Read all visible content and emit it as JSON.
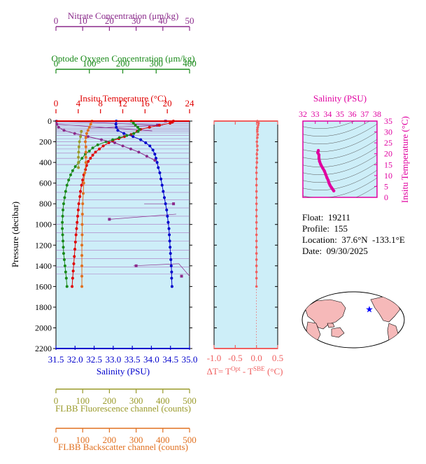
{
  "chart_data": [
    {
      "type": "line",
      "panel": "main profile",
      "y_axis": {
        "label": "Pressure (decibar)",
        "range": [
          0,
          2200
        ],
        "inverted": true,
        "ticks": [
          0,
          200,
          400,
          600,
          800,
          1000,
          1200,
          1400,
          1600,
          1800,
          2000,
          2200
        ]
      },
      "x_axes": [
        {
          "id": "nitrate",
          "label": "Nitrate Concentration (μm/kg)",
          "range": [
            0,
            50
          ],
          "ticks": [
            0,
            10,
            20,
            30,
            40,
            50
          ],
          "color": "#8b2a8b",
          "position": "top"
        },
        {
          "id": "oxygen",
          "label": "Optode Oxygen Concentration (μm/kg)",
          "range": [
            0,
            400
          ],
          "ticks": [
            0,
            100,
            200,
            300,
            400
          ],
          "color": "#1a8a1a",
          "position": "top"
        },
        {
          "id": "temperature",
          "label": "Insitu Temperature (°C)",
          "range": [
            0,
            24
          ],
          "ticks": [
            0,
            4,
            8,
            12,
            16,
            20,
            24
          ],
          "color": "#e00000",
          "position": "top"
        },
        {
          "id": "salinity",
          "label": "Salinity (PSU)",
          "range": [
            31.5,
            35.0
          ],
          "ticks": [
            "31.5",
            "32.0",
            "32.5",
            "33.0",
            "33.5",
            "34.0",
            "34.5",
            "35.0"
          ],
          "color": "#0000cc",
          "position": "bottom"
        },
        {
          "id": "fluorescence",
          "label": "FLBB Fluorescence channel (counts)",
          "range": [
            0,
            500
          ],
          "ticks": [
            0,
            100,
            200,
            300,
            400,
            500
          ],
          "color": "#9a9a2a",
          "position": "bottom"
        },
        {
          "id": "backscatter",
          "label": "FLBB Backscatter channel (counts)",
          "range": [
            0,
            500
          ],
          "ticks": [
            0,
            100,
            200,
            300,
            400,
            500
          ],
          "color": "#e07020",
          "position": "bottom"
        }
      ],
      "series": [
        {
          "axis": "temperature",
          "color": "#e00000",
          "points": [
            [
              21.1,
              0
            ],
            [
              20.9,
              10
            ],
            [
              20.5,
              20
            ],
            [
              18.6,
              40
            ],
            [
              16.8,
              60
            ],
            [
              15.2,
              80
            ],
            [
              14.6,
              100
            ],
            [
              13.5,
              130
            ],
            [
              12.3,
              150
            ],
            [
              11.3,
              170
            ],
            [
              10.2,
              190
            ],
            [
              9.5,
              210
            ],
            [
              8.5,
              240
            ],
            [
              7.8,
              270
            ],
            [
              7.1,
              300
            ],
            [
              6.6,
              330
            ],
            [
              6.2,
              360
            ],
            [
              5.8,
              390
            ],
            [
              5.5,
              430
            ],
            [
              5.3,
              470
            ],
            [
              5.0,
              520
            ],
            [
              4.8,
              570
            ],
            [
              4.6,
              620
            ],
            [
              4.4,
              680
            ],
            [
              4.3,
              730
            ],
            [
              4.1,
              800
            ],
            [
              4.0,
              860
            ],
            [
              3.9,
              920
            ],
            [
              3.8,
              980
            ],
            [
              3.7,
              1040
            ],
            [
              3.6,
              1100
            ],
            [
              3.5,
              1170
            ],
            [
              3.4,
              1240
            ],
            [
              3.3,
              1310
            ],
            [
              3.2,
              1380
            ],
            [
              3.1,
              1450
            ],
            [
              3.0,
              1520
            ],
            [
              2.9,
              1600
            ]
          ]
        },
        {
          "axis": "salinity",
          "color": "#0000cc",
          "points": [
            [
              33.08,
              0
            ],
            [
              33.07,
              30
            ],
            [
              33.08,
              60
            ],
            [
              33.12,
              90
            ],
            [
              33.28,
              120
            ],
            [
              33.52,
              150
            ],
            [
              33.72,
              180
            ],
            [
              33.85,
              210
            ],
            [
              33.96,
              240
            ],
            [
              34.04,
              280
            ],
            [
              34.09,
              320
            ],
            [
              34.12,
              360
            ],
            [
              34.15,
              400
            ],
            [
              34.18,
              450
            ],
            [
              34.22,
              500
            ],
            [
              34.25,
              560
            ],
            [
              34.28,
              620
            ],
            [
              34.31,
              680
            ],
            [
              34.34,
              740
            ],
            [
              34.37,
              800
            ],
            [
              34.4,
              860
            ],
            [
              34.42,
              920
            ],
            [
              34.44,
              980
            ],
            [
              34.46,
              1040
            ],
            [
              34.47,
              1100
            ],
            [
              34.48,
              1160
            ],
            [
              34.49,
              1220
            ],
            [
              34.5,
              1280
            ],
            [
              34.51,
              1340
            ],
            [
              34.52,
              1400
            ],
            [
              34.53,
              1460
            ],
            [
              34.53,
              1520
            ],
            [
              34.54,
              1600
            ]
          ]
        },
        {
          "axis": "oxygen",
          "color": "#1a8a1a",
          "points": [
            [
              225,
              0
            ],
            [
              232,
              20
            ],
            [
              238,
              40
            ],
            [
              245,
              60
            ],
            [
              250,
              80
            ],
            [
              246,
              100
            ],
            [
              233,
              120
            ],
            [
              212,
              140
            ],
            [
              190,
              160
            ],
            [
              170,
              180
            ],
            [
              150,
              200
            ],
            [
              125,
              230
            ],
            [
              110,
              260
            ],
            [
              100,
              290
            ],
            [
              88,
              320
            ],
            [
              78,
              360
            ],
            [
              68,
              400
            ],
            [
              58,
              440
            ],
            [
              50,
              480
            ],
            [
              44,
              520
            ],
            [
              38,
              570
            ],
            [
              33,
              620
            ],
            [
              29,
              680
            ],
            [
              26,
              740
            ],
            [
              23,
              800
            ],
            [
              21,
              860
            ],
            [
              20,
              920
            ],
            [
              19,
              980
            ],
            [
              19,
              1040
            ],
            [
              20,
              1100
            ],
            [
              21,
              1160
            ],
            [
              22,
              1220
            ],
            [
              23,
              1280
            ],
            [
              25,
              1340
            ],
            [
              27,
              1400
            ],
            [
              29,
              1460
            ],
            [
              31,
              1520
            ],
            [
              33,
              1600
            ]
          ]
        },
        {
          "axis": "nitrate",
          "color": "#8b2a8b",
          "points": [
            [
              0.2,
              0
            ],
            [
              0.3,
              30
            ],
            [
              1,
              60
            ],
            [
              3,
              90
            ],
            [
              7,
              120
            ],
            [
              12,
              150
            ],
            [
              17,
              180
            ],
            [
              22,
              210
            ],
            [
              25,
              240
            ],
            [
              28,
              270
            ],
            [
              31,
              300
            ],
            [
              34,
              340
            ],
            [
              37,
              380
            ]
          ]
        },
        {
          "axis": "fluorescence",
          "color": "#9a9a2a",
          "points": [
            [
              95,
              100
            ],
            [
              92,
              150
            ],
            [
              88,
              200
            ],
            [
              86,
              250
            ],
            [
              85,
              300
            ],
            [
              84,
              350
            ],
            [
              84,
              400
            ],
            [
              84,
              450
            ]
          ]
        },
        {
          "axis": "backscatter",
          "color": "#e07020",
          "points": [
            [
              135,
              0
            ],
            [
              130,
              30
            ],
            [
              125,
              60
            ],
            [
              120,
              90
            ],
            [
              115,
              120
            ],
            [
              112,
              160
            ],
            [
              110,
              200
            ],
            [
              112,
              250
            ],
            [
              112,
              300
            ],
            [
              112,
              350
            ],
            [
              112,
              400
            ],
            [
              108,
              500
            ],
            [
              104,
              600
            ],
            [
              102,
              700
            ],
            [
              100,
              800
            ],
            [
              99,
              900
            ],
            [
              98,
              1000
            ],
            [
              98,
              1100
            ],
            [
              97,
              1200
            ],
            [
              97,
              1300
            ],
            [
              97,
              1400
            ],
            [
              97,
              1500
            ],
            [
              97,
              1600
            ]
          ]
        }
      ]
    },
    {
      "type": "scatter",
      "panel": "temperature difference",
      "xlabel": "ΔT= T^Opt - T^SBE (°C)",
      "x_axis": {
        "range": [
          -1.0,
          0.5
        ],
        "ticks": [
          "-1.0",
          "-0.5",
          "0.0",
          "0.5"
        ]
      },
      "y_range": [
        0,
        2200
      ],
      "series": [
        {
          "color": "#f06060",
          "points": [
            [
              0.02,
              0
            ],
            [
              0.03,
              10
            ],
            [
              0.05,
              20
            ],
            [
              0.04,
              40
            ],
            [
              0.03,
              60
            ],
            [
              0.02,
              80
            ],
            [
              0.02,
              100
            ],
            [
              0.03,
              130
            ],
            [
              0.02,
              160
            ],
            [
              0.01,
              200
            ],
            [
              0.02,
              240
            ],
            [
              0.02,
              280
            ],
            [
              0.01,
              320
            ],
            [
              0.01,
              360
            ],
            [
              0.01,
              400
            ],
            [
              0.0,
              450
            ],
            [
              0.0,
              500
            ],
            [
              0.0,
              560
            ],
            [
              0.0,
              620
            ],
            [
              0.0,
              680
            ],
            [
              0.0,
              740
            ],
            [
              0.0,
              800
            ],
            [
              0.0,
              860
            ],
            [
              0.0,
              920
            ],
            [
              0.0,
              980
            ],
            [
              0.0,
              1040
            ],
            [
              0.0,
              1100
            ],
            [
              0.0,
              1160
            ],
            [
              0.0,
              1220
            ],
            [
              0.0,
              1280
            ],
            [
              0.0,
              1340
            ],
            [
              0.0,
              1400
            ],
            [
              0.0,
              1460
            ],
            [
              0.0,
              1520
            ],
            [
              0.0,
              1600
            ]
          ]
        }
      ]
    },
    {
      "type": "scatter",
      "panel": "T-S diagram",
      "title": "Salinity (PSU)",
      "ylabel": "Insitu Temperature (°C)",
      "xlim": [
        32,
        38
      ],
      "ylim": [
        0,
        35
      ],
      "x_ticks": [
        32,
        33,
        34,
        35,
        36,
        37,
        38
      ],
      "y_ticks": [
        0,
        5,
        10,
        15,
        20,
        25,
        30,
        35
      ],
      "color": "#e000a0",
      "points": [
        [
          33.25,
          21.5
        ],
        [
          33.2,
          20.5
        ],
        [
          33.3,
          19.5
        ],
        [
          33.3,
          18.0
        ],
        [
          33.35,
          16.5
        ],
        [
          33.45,
          15.0
        ],
        [
          33.6,
          13.5
        ],
        [
          33.75,
          12.0
        ],
        [
          33.85,
          10.5
        ],
        [
          33.95,
          9.0
        ],
        [
          34.05,
          7.8
        ],
        [
          34.12,
          6.5
        ],
        [
          34.2,
          5.5
        ],
        [
          34.3,
          4.6
        ],
        [
          34.4,
          3.8
        ],
        [
          34.5,
          3.0
        ]
      ]
    }
  ],
  "info": {
    "float": "Float:  19211",
    "profile": "Profile:  155",
    "location": "Location:  37.6°N  -133.1°E",
    "date": "Date:  09/30/2025"
  },
  "colors": {
    "panel_bg": "#cdeef8",
    "nitrate": "#8b2a8b",
    "oxygen": "#1a8a1a",
    "temperature": "#e00000",
    "salinity": "#0000cc",
    "fluorescence": "#9a9a2a",
    "backscatter": "#e07020",
    "delta_t": "#f06060",
    "ts": "#e000a0",
    "land": "#f6b9b9",
    "float_marker": "#0000ff"
  }
}
